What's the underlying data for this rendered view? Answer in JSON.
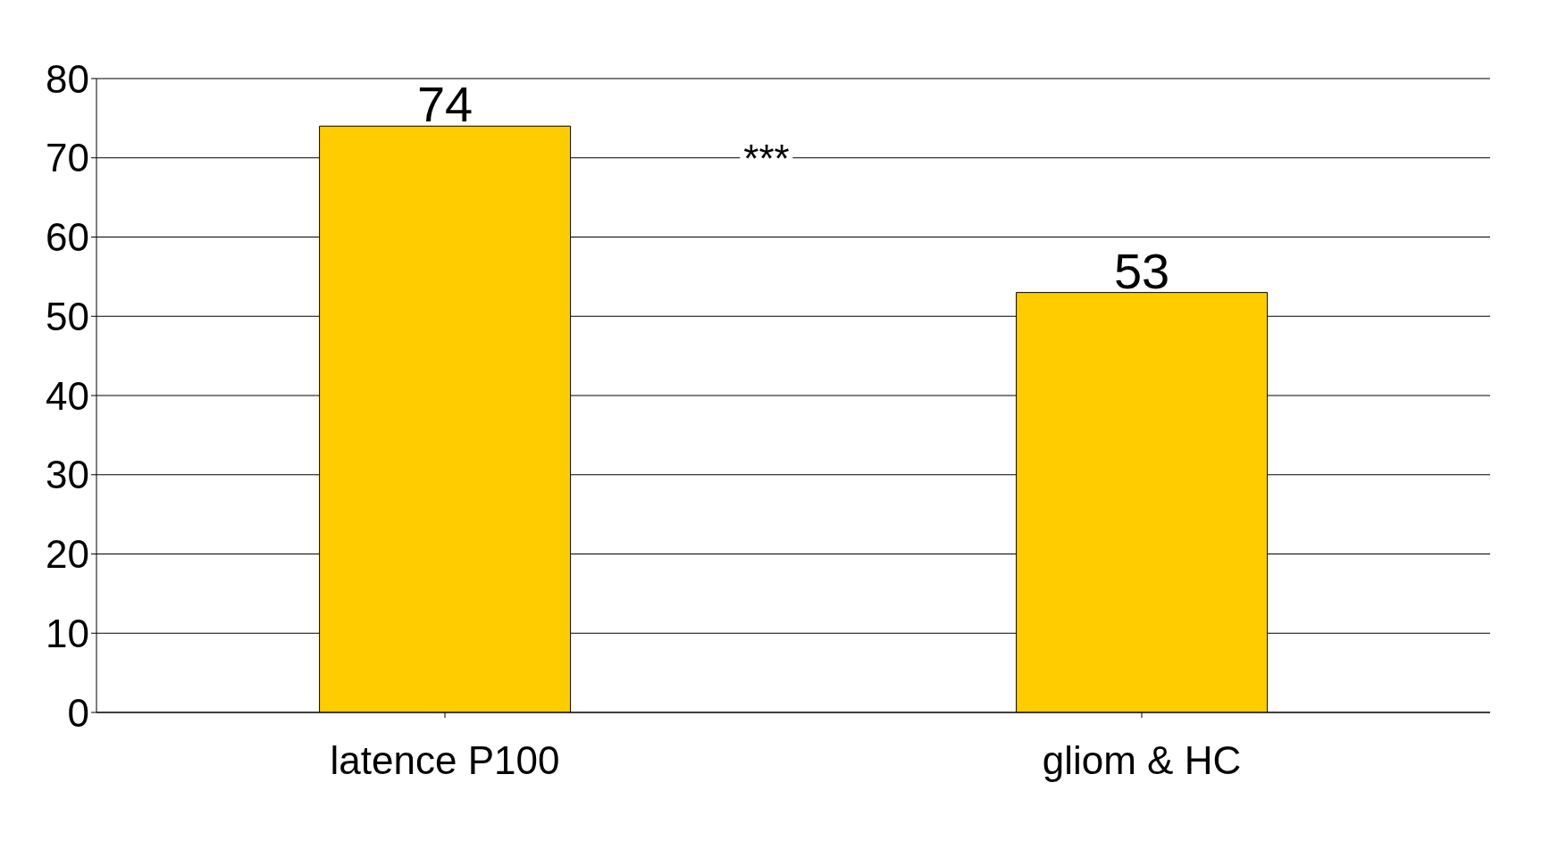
{
  "chart_data": {
    "type": "bar",
    "categories": [
      "latence P100",
      "gliom & HC"
    ],
    "values": [
      74,
      53
    ],
    "color": "#ffcc00",
    "data_labels": true,
    "ylim": [
      0,
      80
    ],
    "yticks": [
      0,
      10,
      20,
      30,
      40,
      50,
      60,
      70,
      80
    ],
    "grid": "y",
    "annotations": [
      "***"
    ]
  }
}
